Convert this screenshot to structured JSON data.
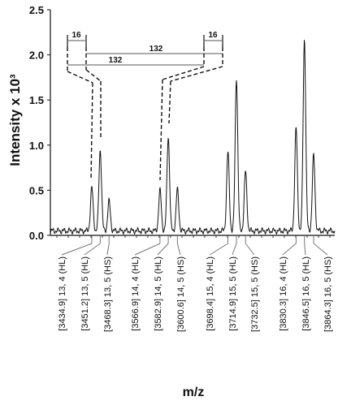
{
  "chart_data": {
    "type": "line",
    "xlabel": "m/z",
    "ylabel": "Intensity x 10³",
    "ylim": [
      0,
      2.5
    ],
    "yticks": [
      "0.0",
      "0.5",
      "1.0",
      "1.5",
      "2.0",
      "2.5"
    ],
    "grid": false,
    "series": [
      {
        "peaks": [
          {
            "mz": 3434.9,
            "intensity": 0.48
          },
          {
            "mz": 3451.2,
            "intensity": 0.9
          },
          {
            "mz": 3468.3,
            "intensity": 0.33
          },
          {
            "mz": 3566.9,
            "intensity": 0.45
          },
          {
            "mz": 3582.9,
            "intensity": 1.05
          },
          {
            "mz": 3600.6,
            "intensity": 0.46
          },
          {
            "mz": 3698.4,
            "intensity": 0.87
          },
          {
            "mz": 3714.9,
            "intensity": 1.7
          },
          {
            "mz": 3732.5,
            "intensity": 0.66
          },
          {
            "mz": 3830.3,
            "intensity": 1.14
          },
          {
            "mz": 3846.5,
            "intensity": 2.13
          },
          {
            "mz": 3864.3,
            "intensity": 0.84
          }
        ]
      }
    ],
    "peak_labels": [
      "[3434.9] 13, 4 (HL)",
      "[3451.2] 13, 5 (HL)",
      "[3468.3] 13, 5 (HS)",
      "[3566.9] 14, 4 (HL)",
      "[3582.9] 14, 5 (HL)",
      "[3600.6] 14, 5 (HS)",
      "[3698.4] 15, 4 (HL)",
      "[3714.9] 15, 5 (HL)",
      "[3732.5] 15, 5 (HS)",
      "[3830.3] 16, 4 (HL)",
      "[3846.5] 16, 5 (HL)",
      "[3864.3] 16, 5 (HS)"
    ],
    "annotations": {
      "left_gap": "16",
      "right_gap": "16",
      "upper_span": "132",
      "lower_span": "132"
    }
  }
}
